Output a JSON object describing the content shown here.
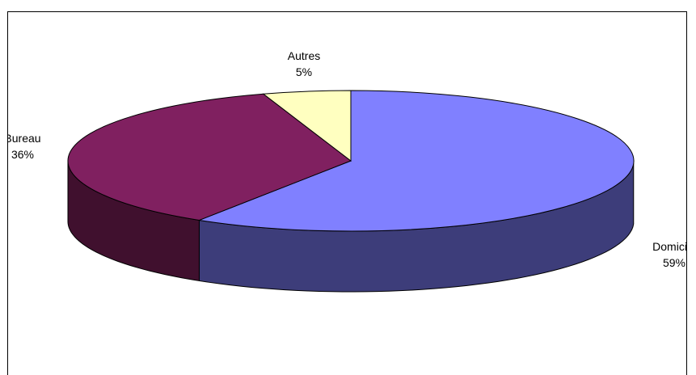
{
  "chart_data": {
    "type": "pie",
    "style": "3d",
    "legend": "none",
    "slices": [
      {
        "label": "Domicile",
        "percent_label": "59%",
        "value": 59,
        "color": "#8080FF",
        "side_color": "#3D3D7A"
      },
      {
        "label": "Bureau",
        "percent_label": "36%",
        "value": 36,
        "color": "#802060",
        "side_color": "#40102E"
      },
      {
        "label": "Autres",
        "percent_label": "5%",
        "value": 5,
        "color": "#FFFFC0",
        "side_color": "#B8B88A"
      }
    ]
  }
}
